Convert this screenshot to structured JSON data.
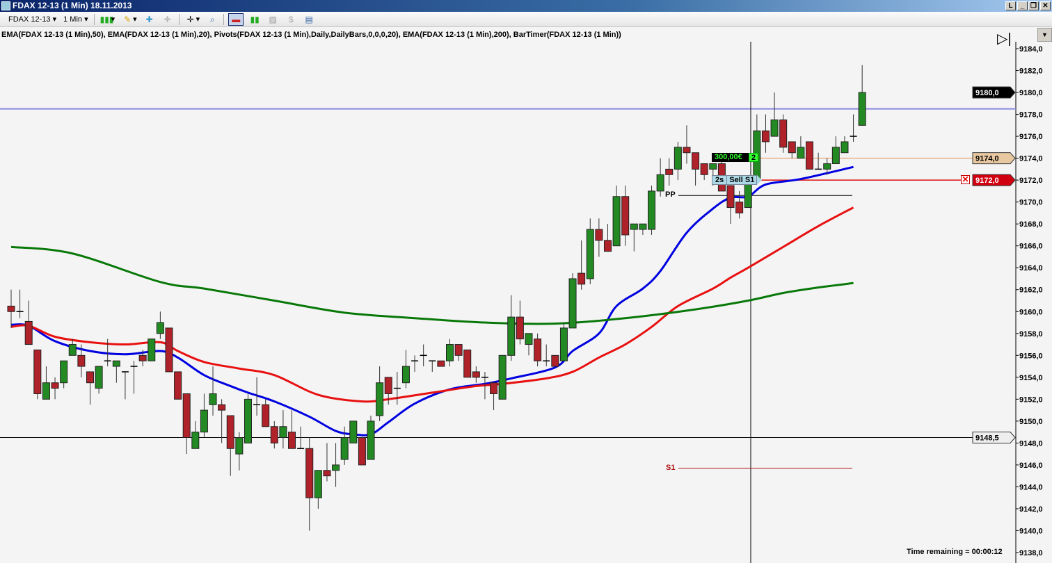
{
  "window": {
    "title": "FDAX 12-13 (1 Min)  18.11.2013",
    "controls": [
      "L",
      "_",
      "❐",
      "✕"
    ]
  },
  "toolbar": {
    "instrument": "FDAX 12-13",
    "interval": "1 Min",
    "icons": [
      "chart-style-icon",
      "pencil-draw-icon",
      "add-indicator-icon",
      "remove-indicator-icon",
      "crosshair-icon",
      "zoom-icon",
      "chart-trader-icon",
      "bar-type-icon",
      "strategy-icon",
      "money-icon",
      "properties-icon"
    ]
  },
  "indicator_text": "EMA(FDAX 12-13 (1 Min),50),  EMA(FDAX 12-13 (1 Min),20),  Pivots(FDAX 12-13 (1 Min),Daily,DailyBars,0,0,0,20),  EMA(FDAX 12-13 (1 Min),200),  BarTimer(FDAX 12-13 (1 Min))",
  "timer_text": "Time remaining = 00:00:12",
  "order": {
    "pnl": "300,00€",
    "quantity": "2",
    "order_time": "2s",
    "order_label": "Sell S1"
  },
  "pivots": {
    "pp_label": "PP",
    "pp": 9170.6,
    "s1_label": "S1",
    "s1": 9145.7
  },
  "colors": {
    "up": "#238a23",
    "down": "#b0222a",
    "ema20": "#0000e0",
    "ema50": "#e81010",
    "ema200": "#087808",
    "hline": "#8888e0",
    "position": "#e8b088",
    "stop": "#e01010"
  },
  "chart_data": {
    "type": "candlestick",
    "yaxis": {
      "min": 9138,
      "max": 9184,
      "step": 2,
      "ticks": [
        "9184,0",
        "9182,0",
        "9180,0",
        "9178,0",
        "9176,0",
        "9174,0",
        "9172,0",
        "9170,0",
        "9168,0",
        "9166,0",
        "9164,0",
        "9162,0",
        "9160,0",
        "9158,0",
        "9156,0",
        "9154,0",
        "9152,0",
        "9150,0",
        "9148,0",
        "9146,0",
        "9144,0",
        "9142,0",
        "9140,0",
        "9138,0"
      ]
    },
    "markers": [
      {
        "label": "9180,0",
        "value": 9180.0,
        "style": "last"
      },
      {
        "label": "9174,0",
        "value": 9174.0,
        "style": "position"
      },
      {
        "label": "9172,0",
        "value": 9172.0,
        "style": "stop"
      },
      {
        "label": "9148,5",
        "value": 9148.5,
        "style": "crosshair"
      }
    ],
    "horizontal_line": 9178.5,
    "ohlc": [
      [
        9160.5,
        9162.0,
        9158.5,
        9160.0
      ],
      [
        9160.0,
        9162.0,
        9159.4,
        9160.0
      ],
      [
        9159.1,
        9161.0,
        9157.0,
        9157.0
      ],
      [
        9156.5,
        9156.5,
        9152.0,
        9152.5
      ],
      [
        9152.0,
        9155.0,
        9152.0,
        9153.5
      ],
      [
        9153.5,
        9154.0,
        9152.0,
        9153.0
      ],
      [
        9153.5,
        9155.5,
        9153.0,
        9155.5
      ],
      [
        9156.0,
        9157.5,
        9156.0,
        9157.0
      ],
      [
        9156.0,
        9157.0,
        9154.0,
        9155.0
      ],
      [
        9154.5,
        9154.5,
        9151.5,
        9153.5
      ],
      [
        9153.0,
        9155.0,
        9152.5,
        9155.0
      ],
      [
        9155.5,
        9157.5,
        9155.0,
        9155.5
      ],
      [
        9155.0,
        9155.5,
        9153.5,
        9155.5
      ],
      [
        9154.5,
        9154.5,
        9152.0,
        9154.5
      ],
      [
        9155.0,
        9155.5,
        9152.5,
        9155.0
      ],
      [
        9156.0,
        9156.5,
        9155.0,
        9155.5
      ],
      [
        9155.5,
        9157.5,
        9155.5,
        9157.5
      ],
      [
        9158.0,
        9160.0,
        9157.5,
        9159.0
      ],
      [
        9158.5,
        9158.5,
        9154.5,
        9154.5
      ],
      [
        9154.5,
        9154.5,
        9152.0,
        9152.0
      ],
      [
        9152.5,
        9152.5,
        9147.0,
        9148.5
      ],
      [
        9147.5,
        9150.0,
        9147.5,
        9149.0
      ],
      [
        9149.0,
        9152.5,
        9148.5,
        9151.0
      ],
      [
        9151.5,
        9155.0,
        9150.5,
        9152.5
      ],
      [
        9151.5,
        9152.0,
        9148.0,
        9151.0
      ],
      [
        9150.5,
        9150.5,
        9145.0,
        9147.5
      ],
      [
        9147.0,
        9149.0,
        9145.5,
        9148.5
      ],
      [
        9148.0,
        9152.5,
        9148.0,
        9152.0
      ],
      [
        9151.5,
        9154.0,
        9150.5,
        9151.5
      ],
      [
        9151.5,
        9152.0,
        9149.5,
        9149.5
      ],
      [
        9149.5,
        9150.0,
        9147.5,
        9148.0
      ],
      [
        9148.5,
        9151.0,
        9147.5,
        9149.5
      ],
      [
        9149.0,
        9151.0,
        9147.5,
        9147.5
      ],
      [
        9147.5,
        9149.5,
        9147.5,
        9147.5
      ],
      [
        9147.5,
        9148.5,
        9140.0,
        9143.0
      ],
      [
        9143.0,
        9145.5,
        9142.0,
        9145.5
      ],
      [
        9145.5,
        9148.0,
        9144.5,
        9145.0
      ],
      [
        9145.5,
        9148.0,
        9144.0,
        9146.0
      ],
      [
        9146.5,
        9149.5,
        9146.0,
        9148.5
      ],
      [
        9148.0,
        9150.0,
        9148.0,
        9150.0
      ],
      [
        9148.5,
        9148.5,
        9146.0,
        9146.0
      ],
      [
        9146.5,
        9150.5,
        9146.5,
        9150.0
      ],
      [
        9150.5,
        9155.0,
        9150.0,
        9153.5
      ],
      [
        9154.0,
        9154.0,
        9151.5,
        9152.5
      ],
      [
        9153.0,
        9154.5,
        9151.5,
        9153.0
      ],
      [
        9153.5,
        9156.5,
        9153.0,
        9155.0
      ],
      [
        9155.5,
        9156.0,
        9154.5,
        9155.5
      ],
      [
        9156.0,
        9157.0,
        9155.0,
        9156.0
      ],
      [
        9155.5,
        9155.5,
        9154.5,
        9155.5
      ],
      [
        9155.5,
        9155.5,
        9155.0,
        9155.0
      ],
      [
        9155.5,
        9157.5,
        9155.0,
        9157.0
      ],
      [
        9157.0,
        9157.0,
        9155.5,
        9156.0
      ],
      [
        9156.5,
        9156.5,
        9154.0,
        9154.0
      ],
      [
        9154.5,
        9155.0,
        9153.5,
        9154.0
      ],
      [
        9154.0,
        9154.5,
        9152.0,
        9154.0
      ],
      [
        9153.5,
        9153.5,
        9151.0,
        9152.5
      ],
      [
        9152.0,
        9156.0,
        9152.0,
        9156.0
      ],
      [
        9156.0,
        9161.5,
        9155.5,
        9159.5
      ],
      [
        9159.5,
        9161.0,
        9157.0,
        9157.5
      ],
      [
        9157.0,
        9158.0,
        9156.0,
        9158.0
      ],
      [
        9157.5,
        9158.0,
        9155.0,
        9155.5
      ],
      [
        9155.5,
        9157.0,
        9155.0,
        9155.5
      ],
      [
        9156.0,
        9156.0,
        9155.0,
        9155.0
      ],
      [
        9155.5,
        9159.0,
        9155.5,
        9158.5
      ],
      [
        9158.5,
        9163.5,
        9158.5,
        9163.0
      ],
      [
        9163.5,
        9166.5,
        9162.0,
        9162.5
      ],
      [
        9163.0,
        9168.5,
        9162.5,
        9167.5
      ],
      [
        9167.5,
        9168.5,
        9165.0,
        9166.5
      ],
      [
        9166.5,
        9168.0,
        9165.5,
        9165.5
      ],
      [
        9166.0,
        9171.5,
        9166.0,
        9170.5
      ],
      [
        9170.5,
        9171.5,
        9166.0,
        9167.0
      ],
      [
        9167.5,
        9168.0,
        9165.5,
        9168.0
      ],
      [
        9167.5,
        9168.0,
        9167.0,
        9168.0
      ],
      [
        9167.5,
        9171.5,
        9167.0,
        9171.0
      ],
      [
        9171.0,
        9174.0,
        9170.5,
        9172.5
      ],
      [
        9173.0,
        9174.0,
        9171.5,
        9172.5
      ],
      [
        9173.0,
        9175.5,
        9172.0,
        9175.0
      ],
      [
        9175.0,
        9177.0,
        9173.5,
        9174.5
      ],
      [
        9174.5,
        9174.5,
        9171.5,
        9173.0
      ],
      [
        9173.5,
        9173.5,
        9172.0,
        9172.5
      ],
      [
        9173.0,
        9173.5,
        9171.5,
        9173.5
      ],
      [
        9173.5,
        9174.0,
        9171.0,
        9171.0
      ],
      [
        9171.5,
        9171.5,
        9168.0,
        9169.5
      ],
      [
        9170.0,
        9171.0,
        9168.5,
        9169.0
      ],
      [
        9169.5,
        9172.0,
        9169.5,
        9172.0
      ],
      [
        9172.0,
        9178.0,
        9172.0,
        9176.5
      ],
      [
        9176.5,
        9178.0,
        9174.5,
        9175.5
      ],
      [
        9176.0,
        9180.0,
        9176.0,
        9177.5
      ],
      [
        9177.5,
        9178.0,
        9174.5,
        9175.0
      ],
      [
        9175.5,
        9175.5,
        9174.0,
        9174.5
      ],
      [
        9174.0,
        9176.0,
        9174.0,
        9175.0
      ],
      [
        9175.5,
        9175.5,
        9173.0,
        9173.0
      ],
      [
        9173.0,
        9174.5,
        9173.0,
        9173.0
      ],
      [
        9173.0,
        9174.0,
        9172.5,
        9173.5
      ],
      [
        9173.5,
        9176.0,
        9173.5,
        9175.0
      ],
      [
        9174.5,
        9176.0,
        9174.5,
        9175.5
      ],
      [
        9176.0,
        9178.0,
        9175.5,
        9176.0
      ],
      [
        9177.0,
        9182.5,
        9177.0,
        9180.0
      ]
    ],
    "series": [
      {
        "name": "EMA 20",
        "color": "#0000e0",
        "points": [
          [
            0,
            9158.8
          ],
          [
            2,
            9158.7
          ],
          [
            5,
            9157.3
          ],
          [
            9,
            9156.4
          ],
          [
            13,
            9156.1
          ],
          [
            17,
            9156.4
          ],
          [
            19,
            9155.8
          ],
          [
            22,
            9154.2
          ],
          [
            25,
            9153.2
          ],
          [
            27,
            9152.6
          ],
          [
            30,
            9151.8
          ],
          [
            34,
            9150.4
          ],
          [
            37,
            9149.1
          ],
          [
            39,
            9148.8
          ],
          [
            41,
            9148.8
          ],
          [
            43,
            9149.9
          ],
          [
            46,
            9151.6
          ],
          [
            50,
            9152.9
          ],
          [
            54,
            9153.4
          ],
          [
            57,
            9153.9
          ],
          [
            62,
            9154.9
          ],
          [
            64,
            9156.4
          ],
          [
            67,
            9158.0
          ],
          [
            69,
            9160.5
          ],
          [
            72,
            9162.1
          ],
          [
            74,
            9163.7
          ],
          [
            77,
            9167.2
          ],
          [
            80,
            9169.4
          ],
          [
            82,
            9170.4
          ],
          [
            84,
            9170.5
          ],
          [
            86,
            9171.6
          ],
          [
            90,
            9172.1
          ],
          [
            96,
            9173.2
          ]
        ]
      },
      {
        "name": "EMA 50",
        "color": "#e81010",
        "points": [
          [
            0,
            9158.6
          ],
          [
            2,
            9158.7
          ],
          [
            5,
            9157.7
          ],
          [
            9,
            9157.2
          ],
          [
            13,
            9157.0
          ],
          [
            17,
            9157.2
          ],
          [
            19,
            9156.4
          ],
          [
            22,
            9155.4
          ],
          [
            26,
            9154.8
          ],
          [
            30,
            9154.2
          ],
          [
            35,
            9152.4
          ],
          [
            40,
            9151.8
          ],
          [
            43,
            9152.0
          ],
          [
            48,
            9152.6
          ],
          [
            53,
            9153.2
          ],
          [
            56,
            9153.4
          ],
          [
            61,
            9153.9
          ],
          [
            64,
            9154.5
          ],
          [
            67,
            9155.8
          ],
          [
            70,
            9157.0
          ],
          [
            73,
            9158.6
          ],
          [
            76,
            9160.5
          ],
          [
            80,
            9162.1
          ],
          [
            82,
            9163.1
          ],
          [
            84,
            9164.0
          ],
          [
            88,
            9165.9
          ],
          [
            92,
            9167.8
          ],
          [
            96,
            9169.5
          ]
        ]
      },
      {
        "name": "EMA 200",
        "color": "#087808",
        "points": [
          [
            0,
            9165.9
          ],
          [
            7,
            9165.3
          ],
          [
            17,
            9162.7
          ],
          [
            22,
            9162.1
          ],
          [
            30,
            9161.0
          ],
          [
            38,
            9159.9
          ],
          [
            46,
            9159.4
          ],
          [
            54,
            9159.0
          ],
          [
            62,
            9158.9
          ],
          [
            70,
            9159.4
          ],
          [
            78,
            9160.2
          ],
          [
            84,
            9161.0
          ],
          [
            88,
            9161.7
          ],
          [
            92,
            9162.2
          ],
          [
            96,
            9162.6
          ]
        ]
      }
    ]
  }
}
